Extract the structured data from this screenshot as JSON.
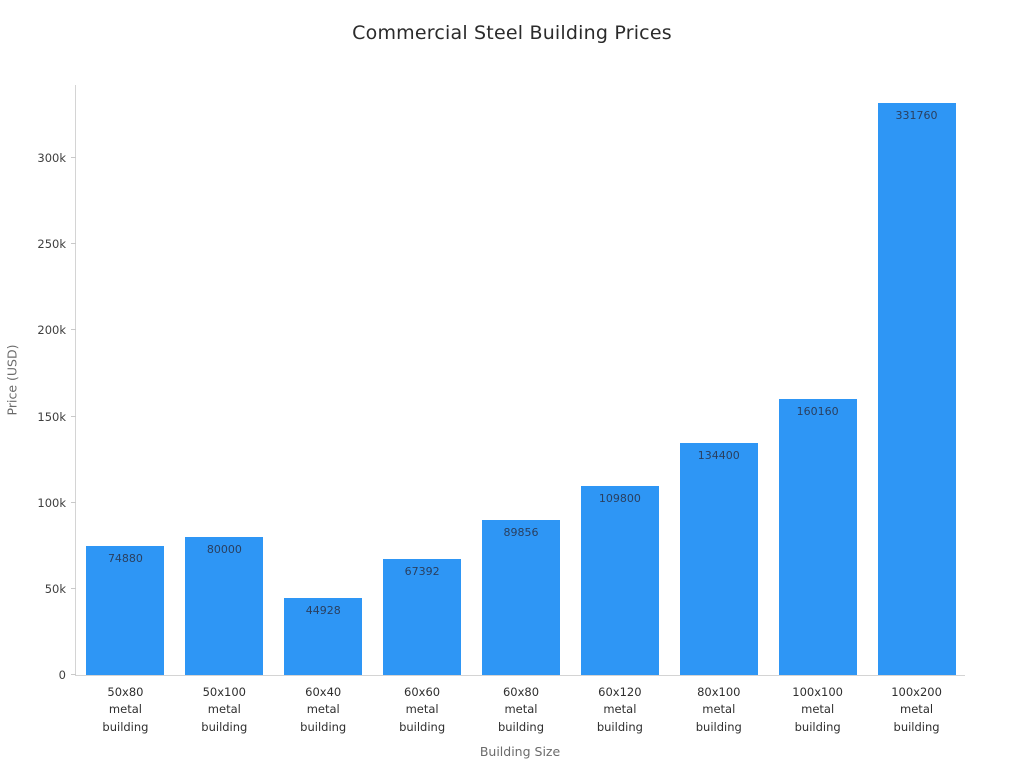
{
  "chart_data": {
    "type": "bar",
    "title": "Commercial Steel Building Prices",
    "xlabel": "Building Size",
    "ylabel": "Price (USD)",
    "categories": [
      "50x80 metal building",
      "50x100 metal building",
      "60x40 metal building",
      "60x60 metal building",
      "60x80 metal building",
      "60x120 metal building",
      "80x100 metal building",
      "100x100 metal building",
      "100x200 metal building"
    ],
    "values": [
      74880,
      80000,
      44928,
      67392,
      89856,
      109800,
      134400,
      160160,
      331760
    ],
    "ylim": [
      0,
      343000
    ],
    "yticks": [
      {
        "value": 0,
        "label": "0"
      },
      {
        "value": 50000,
        "label": "50k"
      },
      {
        "value": 100000,
        "label": "100k"
      },
      {
        "value": 150000,
        "label": "150k"
      },
      {
        "value": 200000,
        "label": "200k"
      },
      {
        "value": 250000,
        "label": "250k"
      },
      {
        "value": 300000,
        "label": "300k"
      }
    ],
    "bar_color": "#2E96F5",
    "value_label_color": "#2a3f5f",
    "grid": false,
    "legend": "none"
  }
}
